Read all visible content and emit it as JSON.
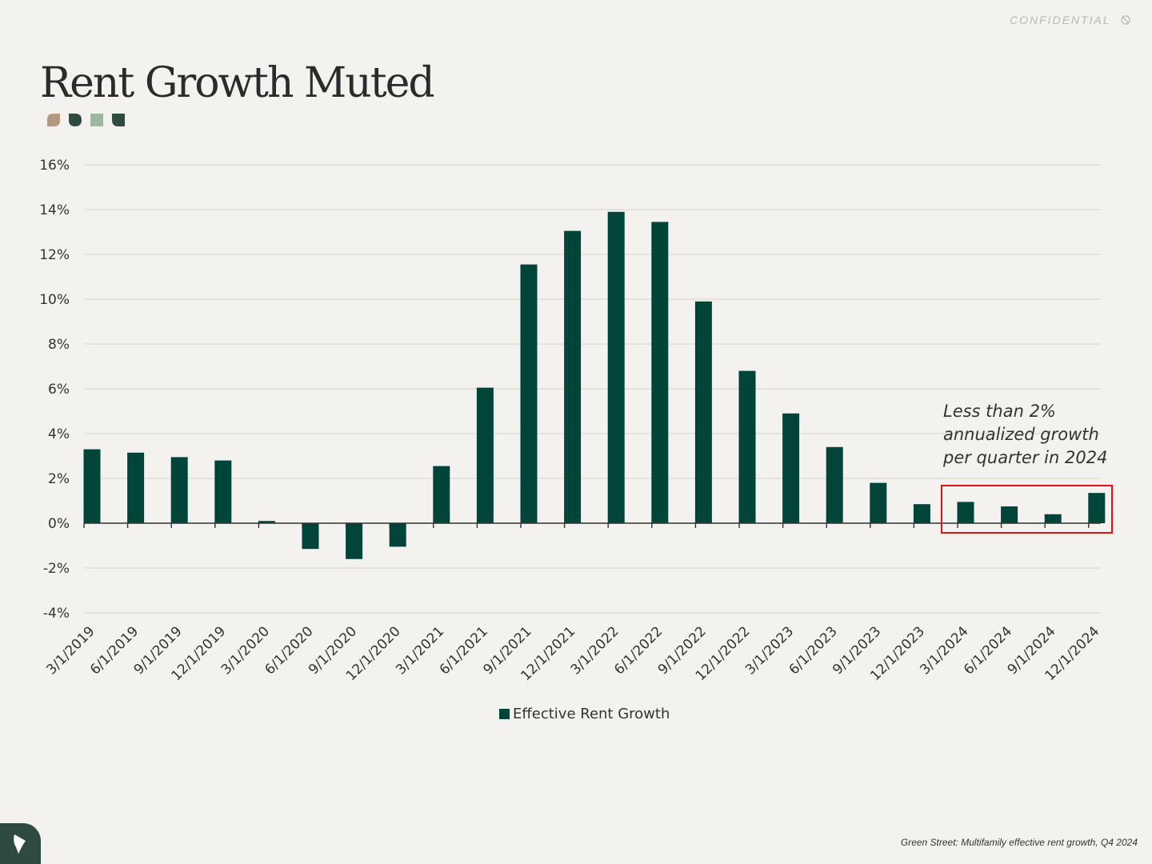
{
  "header": {
    "confidential_label": "CONFIDENTIAL",
    "confidential_icon": "no-entry-icon",
    "title": "Rent Growth Muted"
  },
  "decor": {
    "leaf_colors": [
      "#b39a7e",
      "#2f4a40",
      "#9db8a0",
      "#2f4a40"
    ]
  },
  "annotation": {
    "lines": [
      "Less than 2%",
      "annualized growth",
      "per quarter in 2024"
    ],
    "highlight_color": "#e0121b"
  },
  "footer": {
    "source": "Green Street: Multifamily effective rent growth, Q4 2024",
    "logo_icon": "company-logo-icon"
  },
  "colors": {
    "bar": "#00443a",
    "grid": "#dcdbd6",
    "axis": "#333333",
    "background": "#f3f2ee"
  },
  "chart_data": {
    "type": "bar",
    "title": "",
    "xlabel": "",
    "ylabel": "",
    "ylim": [
      -4,
      16
    ],
    "yticks": [
      -4,
      -2,
      0,
      2,
      4,
      6,
      8,
      10,
      12,
      14,
      16
    ],
    "ytick_labels": [
      "-4%",
      "-2%",
      "0%",
      "2%",
      "4%",
      "6%",
      "8%",
      "10%",
      "12%",
      "14%",
      "16%"
    ],
    "grid": true,
    "legend_position": "bottom",
    "categories": [
      "3/1/2019",
      "6/1/2019",
      "9/1/2019",
      "12/1/2019",
      "3/1/2020",
      "6/1/2020",
      "9/1/2020",
      "12/1/2020",
      "3/1/2021",
      "6/1/2021",
      "9/1/2021",
      "12/1/2021",
      "3/1/2022",
      "6/1/2022",
      "9/1/2022",
      "12/1/2022",
      "3/1/2023",
      "6/1/2023",
      "9/1/2023",
      "12/1/2023",
      "3/1/2024",
      "6/1/2024",
      "9/1/2024",
      "12/1/2024"
    ],
    "series": [
      {
        "name": "Effective Rent Growth",
        "values": [
          3.3,
          3.15,
          2.95,
          2.8,
          0.1,
          -1.15,
          -1.6,
          -1.05,
          2.55,
          6.05,
          11.55,
          13.05,
          13.9,
          13.45,
          9.9,
          6.8,
          4.9,
          3.4,
          1.8,
          0.85,
          0.95,
          0.75,
          0.4,
          1.35
        ]
      }
    ]
  }
}
